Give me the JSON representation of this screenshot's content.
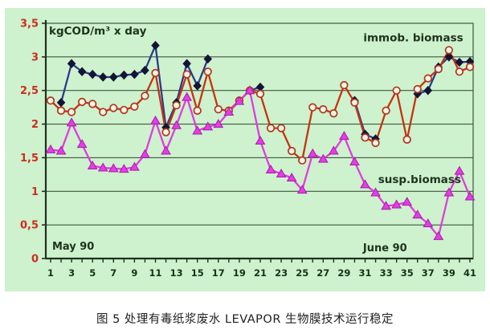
{
  "figure": {
    "caption": "图 5  处理有毒纸浆废水 LEVAPOR 生物膜技术运行稳定"
  },
  "chart_data": {
    "type": "line",
    "title": "kgCOD/m³ x day",
    "x_range": [
      1,
      41
    ],
    "x_tick_every": 1,
    "x_labeled_ticks": [
      1,
      3,
      5,
      7,
      9,
      11,
      13,
      15,
      17,
      19,
      21,
      23,
      25,
      27,
      29,
      31,
      33,
      35,
      37,
      39,
      41
    ],
    "ylim": [
      0,
      3.5
    ],
    "y_tick_step": 0.5,
    "y_tick_labels": [
      "0",
      "0,5",
      "1",
      "1,5",
      "2",
      "2,5",
      "3",
      "3,5"
    ],
    "grid": true,
    "legend_position": "none",
    "colors": {
      "canvas": "#cdf2cd",
      "grid": "#41563f",
      "axis": "#20301f",
      "y_tick_label": "#d02c1c",
      "x_tick_label": "#17311a",
      "title": "#1e331e",
      "annotation": "#1e331e"
    },
    "month_labels": [
      {
        "text": "May 90",
        "day": 1.15,
        "value": 0.13
      },
      {
        "text": "June 90",
        "day": 30.8,
        "value": 0.11
      }
    ],
    "annotations": [
      {
        "text": "immob. biomass",
        "day": 35.6,
        "value": 3.28
      },
      {
        "text": "susp.biomass",
        "day": 36.2,
        "value": 1.17
      }
    ],
    "series": [
      {
        "name": "immob. biomass",
        "label": "immob. biomass",
        "marker": "diamond",
        "line_color": "#2e3a8c",
        "marker_fill": "#141436",
        "marker_stroke": "#141436",
        "values": [
          null,
          2.32,
          2.9,
          2.78,
          2.74,
          2.7,
          2.7,
          2.73,
          2.74,
          2.8,
          3.17,
          1.95,
          2.32,
          2.9,
          2.57,
          2.97,
          null,
          null,
          null,
          2.5,
          2.55,
          null,
          null,
          null,
          null,
          null,
          null,
          null,
          null,
          2.35,
          1.85,
          1.78,
          null,
          null,
          null,
          2.45,
          2.5,
          2.85,
          3.0,
          2.92,
          2.93
        ]
      },
      {
        "name": "open-circles-unlabeled",
        "label": null,
        "marker": "circle",
        "line_color": "#c63310",
        "marker_fill": "#fbf3e4",
        "marker_stroke": "#b03520",
        "values": [
          2.35,
          2.2,
          2.18,
          2.33,
          2.3,
          2.18,
          2.24,
          2.21,
          2.26,
          2.42,
          2.76,
          1.88,
          2.28,
          2.74,
          2.2,
          2.78,
          2.22,
          2.2,
          2.35,
          2.5,
          2.45,
          1.94,
          1.94,
          1.6,
          1.46,
          2.25,
          2.22,
          2.16,
          2.58,
          2.32,
          1.8,
          1.72,
          2.2,
          2.5,
          1.77,
          2.52,
          2.68,
          2.82,
          3.1,
          2.78,
          2.85
        ]
      },
      {
        "name": "susp. biomass",
        "label": "susp.biomass",
        "marker": "triangle",
        "line_color": "#df3cdf",
        "marker_fill": "#e23ee2",
        "marker_stroke": "#a81ca8",
        "values": [
          1.62,
          1.6,
          2.02,
          1.7,
          1.38,
          1.35,
          1.34,
          1.33,
          1.36,
          1.55,
          2.05,
          1.6,
          1.98,
          2.4,
          1.9,
          1.96,
          2.0,
          2.18,
          2.34,
          2.5,
          1.75,
          1.32,
          1.26,
          1.2,
          1.02,
          1.56,
          1.48,
          1.6,
          1.82,
          1.44,
          1.1,
          0.98,
          0.78,
          0.8,
          0.84,
          0.65,
          0.52,
          0.33,
          0.98,
          1.3,
          0.92
        ]
      }
    ]
  }
}
